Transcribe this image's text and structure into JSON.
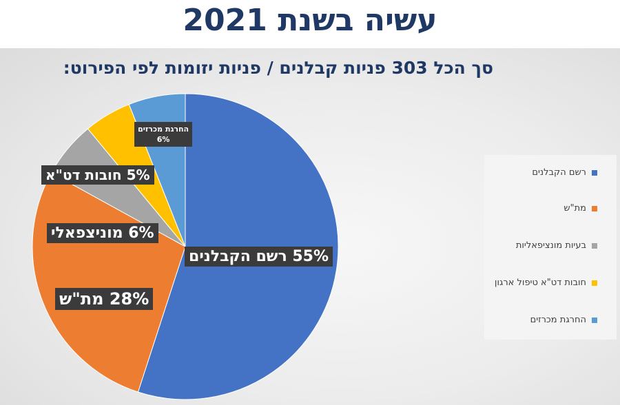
{
  "header": {
    "title": "עשיה בשנת 2021",
    "subtitle": "סך הכל 303 פניות קבלנים / פניות יזומות לפי הפירוט:"
  },
  "chart_data": {
    "type": "pie",
    "title": "עשיה בשנת 2021",
    "subtitle": "סך הכל 303 פניות קבלנים / פניות יזומות לפי הפירוט:",
    "total": 303,
    "slices": [
      {
        "category": "רשם הקבלנים",
        "legend": "רשם הקבלנים",
        "value": 55,
        "label": "55% רשם הקבלנים",
        "color": "#4472c4"
      },
      {
        "category": "מת\"ש",
        "legend": "מת\"ש",
        "value": 28,
        "label": "28% מת\"ש",
        "color": "#ed7d31"
      },
      {
        "category": "מוניצפאלי",
        "legend": "בעיות מונציפאליות",
        "value": 6,
        "label": "6% מוניצפאלי",
        "color": "#a5a5a5"
      },
      {
        "category": "חובות דט\"א",
        "legend": "חובות דט\"א טיפול ארגון",
        "value": 5,
        "label": "5% חובות דט\"א",
        "color": "#ffc000"
      },
      {
        "category": "החרגת מכרזים",
        "legend": "החרגת מכרזים",
        "value": 6,
        "label_line1": "החרגת מכרזים",
        "label_line2": "6%",
        "color": "#5b9bd5"
      }
    ],
    "legend_position": "right"
  }
}
